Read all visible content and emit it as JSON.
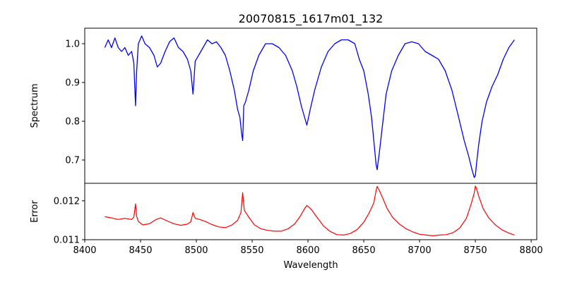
{
  "chart_data": [
    {
      "type": "line",
      "title": "20070815_1617m01_132",
      "ylabel": "Spectrum",
      "xlim": [
        8400,
        8805
      ],
      "ylim": [
        0.64,
        1.04
      ],
      "yticks": [
        0.7,
        0.8,
        0.9,
        1.0
      ],
      "ytick_labels": [
        "0.7",
        "0.8",
        "0.9",
        "1.0"
      ],
      "grid": false,
      "series": [
        {
          "color": "#0000ff",
          "x": [
            8418,
            8421,
            8424,
            8427,
            8430,
            8433,
            8436,
            8439,
            8442,
            8444,
            8445.5,
            8446.5,
            8448,
            8451,
            8454,
            8458,
            8462,
            8465,
            8468,
            8472,
            8476,
            8480,
            8484,
            8488,
            8492,
            8495,
            8497,
            8499,
            8502,
            8506,
            8510,
            8514,
            8518,
            8522,
            8526,
            8530,
            8534,
            8537,
            8539,
            8540.5,
            8541.5,
            8542.5,
            8544,
            8547,
            8551,
            8556,
            8562,
            8568,
            8574,
            8580,
            8586,
            8590,
            8594,
            8597,
            8599,
            8602,
            8606,
            8612,
            8618,
            8624,
            8630,
            8636,
            8642,
            8646,
            8650,
            8654,
            8657,
            8659,
            8661,
            8662,
            8664,
            8666,
            8670,
            8675,
            8681,
            8687,
            8693,
            8699,
            8705,
            8711,
            8717,
            8723,
            8729,
            8735,
            8740,
            8744,
            8747,
            8749,
            8750,
            8751,
            8753,
            8756,
            8760,
            8765,
            8770,
            8775,
            8780,
            8785
          ],
          "y": [
            0.99,
            1.01,
            0.99,
            1.015,
            0.99,
            0.98,
            0.99,
            0.97,
            0.98,
            0.95,
            0.84,
            0.93,
            1.0,
            1.02,
            1.0,
            0.99,
            0.97,
            0.94,
            0.95,
            0.98,
            1.005,
            1.015,
            0.99,
            0.98,
            0.96,
            0.93,
            0.87,
            0.955,
            0.97,
            0.99,
            1.01,
            1.0,
            1.005,
            0.99,
            0.97,
            0.93,
            0.88,
            0.83,
            0.81,
            0.77,
            0.75,
            0.84,
            0.85,
            0.88,
            0.93,
            0.97,
            1.0,
            1.0,
            0.99,
            0.97,
            0.93,
            0.89,
            0.84,
            0.81,
            0.79,
            0.83,
            0.88,
            0.94,
            0.98,
            1.0,
            1.01,
            1.01,
            1.0,
            0.96,
            0.93,
            0.87,
            0.81,
            0.75,
            0.69,
            0.675,
            0.72,
            0.77,
            0.87,
            0.93,
            0.97,
            1.0,
            1.005,
            1.0,
            0.98,
            0.97,
            0.96,
            0.93,
            0.88,
            0.81,
            0.75,
            0.71,
            0.675,
            0.655,
            0.66,
            0.69,
            0.74,
            0.8,
            0.85,
            0.89,
            0.92,
            0.96,
            0.99,
            1.01
          ]
        }
      ]
    },
    {
      "type": "line",
      "xlabel": "Wavelength",
      "ylabel": "Error",
      "xlim": [
        8400,
        8805
      ],
      "ylim": [
        0.011,
        0.01245
      ],
      "xticks": [
        8400,
        8450,
        8500,
        8550,
        8600,
        8650,
        8700,
        8750,
        8800
      ],
      "xtick_labels": [
        "8400",
        "8450",
        "8500",
        "8550",
        "8600",
        "8650",
        "8700",
        "8750",
        "8800"
      ],
      "yticks": [
        0.011,
        0.012
      ],
      "ytick_labels": [
        "0.011",
        "0.012"
      ],
      "grid": false,
      "series": [
        {
          "color": "#ff0000",
          "x": [
            8418,
            8424,
            8430,
            8436,
            8442,
            8444,
            8445.5,
            8446.5,
            8448,
            8452,
            8458,
            8464,
            8468,
            8474,
            8480,
            8486,
            8492,
            8495,
            8497,
            8499,
            8503,
            8508,
            8514,
            8520,
            8526,
            8532,
            8537,
            8540,
            8541.5,
            8543,
            8547,
            8552,
            8558,
            8564,
            8570,
            8576,
            8582,
            8588,
            8593,
            8597,
            8599,
            8603,
            8608,
            8614,
            8620,
            8626,
            8632,
            8638,
            8644,
            8650,
            8655,
            8659,
            8661,
            8662,
            8664,
            8667,
            8671,
            8676,
            8682,
            8688,
            8694,
            8700,
            8706,
            8712,
            8718,
            8724,
            8730,
            8736,
            8742,
            8746,
            8749,
            8750,
            8751,
            8753,
            8757,
            8762,
            8768,
            8774,
            8780,
            8785
          ],
          "y": [
            0.01159,
            0.01156,
            0.01152,
            0.01155,
            0.01152,
            0.01158,
            0.01192,
            0.0116,
            0.01147,
            0.01138,
            0.01141,
            0.01152,
            0.01156,
            0.01148,
            0.01141,
            0.01137,
            0.0114,
            0.01146,
            0.0117,
            0.01155,
            0.01152,
            0.01147,
            0.01139,
            0.01133,
            0.01131,
            0.01138,
            0.0115,
            0.0117,
            0.01221,
            0.01175,
            0.01158,
            0.01138,
            0.01128,
            0.01124,
            0.01122,
            0.01122,
            0.01128,
            0.0114,
            0.0116,
            0.0118,
            0.01188,
            0.01178,
            0.01158,
            0.01135,
            0.01121,
            0.01113,
            0.01112,
            0.01116,
            0.01126,
            0.01145,
            0.0117,
            0.01195,
            0.01225,
            0.01237,
            0.01226,
            0.01207,
            0.0118,
            0.01157,
            0.0114,
            0.01128,
            0.0112,
            0.01114,
            0.01112,
            0.0111,
            0.01112,
            0.01113,
            0.01118,
            0.0113,
            0.01155,
            0.0119,
            0.0122,
            0.01238,
            0.01232,
            0.01212,
            0.0118,
            0.01156,
            0.01138,
            0.01125,
            0.01117,
            0.01112
          ]
        }
      ]
    }
  ]
}
